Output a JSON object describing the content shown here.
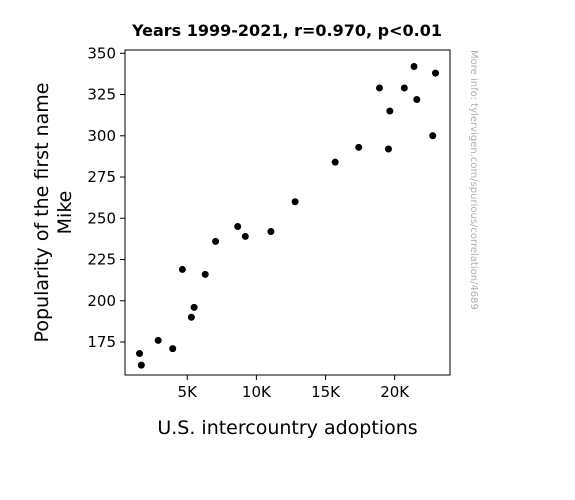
{
  "chart_data": {
    "type": "scatter",
    "title": "Years 1999-2021, r=0.970, p<0.01",
    "xlabel": "U.S. intercountry adoptions",
    "ylabel_lines": [
      "Popularity of the first name",
      "Mike"
    ],
    "xlim": [
      500,
      24000
    ],
    "ylim": [
      155,
      352
    ],
    "xticks": [
      {
        "value": 5000,
        "label": "5K"
      },
      {
        "value": 10000,
        "label": "10K"
      },
      {
        "value": 15000,
        "label": "15K"
      },
      {
        "value": 20000,
        "label": "20K"
      }
    ],
    "yticks": [
      {
        "value": 175,
        "label": "175"
      },
      {
        "value": 200,
        "label": "200"
      },
      {
        "value": 225,
        "label": "225"
      },
      {
        "value": 250,
        "label": "250"
      },
      {
        "value": 275,
        "label": "275"
      },
      {
        "value": 300,
        "label": "300"
      },
      {
        "value": 325,
        "label": "325"
      },
      {
        "value": 350,
        "label": "350"
      }
    ],
    "points": [
      {
        "x": 1550,
        "y": 168
      },
      {
        "x": 1680,
        "y": 161
      },
      {
        "x": 2900,
        "y": 176
      },
      {
        "x": 3950,
        "y": 171
      },
      {
        "x": 4650,
        "y": 219
      },
      {
        "x": 5300,
        "y": 190
      },
      {
        "x": 5500,
        "y": 196
      },
      {
        "x": 6300,
        "y": 216
      },
      {
        "x": 7050,
        "y": 236
      },
      {
        "x": 8650,
        "y": 245
      },
      {
        "x": 9200,
        "y": 239
      },
      {
        "x": 11050,
        "y": 242
      },
      {
        "x": 12800,
        "y": 260
      },
      {
        "x": 15700,
        "y": 284
      },
      {
        "x": 17400,
        "y": 293
      },
      {
        "x": 18900,
        "y": 329
      },
      {
        "x": 19550,
        "y": 292
      },
      {
        "x": 19650,
        "y": 315
      },
      {
        "x": 20700,
        "y": 329
      },
      {
        "x": 21400,
        "y": 342
      },
      {
        "x": 21600,
        "y": 322
      },
      {
        "x": 22750,
        "y": 300
      },
      {
        "x": 22950,
        "y": 338
      }
    ],
    "marker_color": "#000000",
    "grid": false,
    "legend": "none"
  },
  "watermark": "More info: tylervigen.com/spurious/correlation/4689"
}
